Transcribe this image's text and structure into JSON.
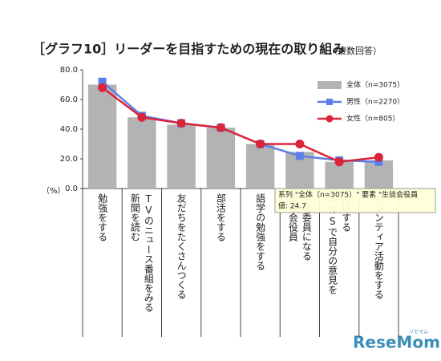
{
  "chart_data": {
    "type": "bar_line",
    "title": "［グラフ10］リーダーを目指すための現在の取り組み",
    "subtitle": "（複数回答）",
    "y_unit": "（%）",
    "categories": [
      [
        "勉強をする"
      ],
      [
        "新聞を読む",
        "TVのニュース番組をみる"
      ],
      [
        "友だちをたくさんつくる"
      ],
      [
        "部活をする"
      ],
      [
        "語学の勉強をする"
      ],
      [
        "生徒会役員",
        "学級委員になる"
      ],
      [
        "SNSで自分の意見を",
        "発信する"
      ],
      [
        "ボランティア活動をする"
      ]
    ],
    "series": [
      {
        "name": "全体（n=3075）",
        "kind": "bar",
        "color": "#b3b3b3",
        "values": [
          70,
          48,
          43,
          41,
          30,
          24.7,
          18,
          19
        ]
      },
      {
        "name": "男性（n=2270）",
        "kind": "line",
        "marker": "square",
        "color": "#5b7fe8",
        "values": [
          72,
          49,
          44,
          41,
          30,
          22,
          19,
          18
        ]
      },
      {
        "name": "女性（n=805）",
        "kind": "line",
        "marker": "circle",
        "color": "#d9243a",
        "values": [
          68,
          48,
          44,
          41,
          30,
          30,
          18,
          21
        ]
      }
    ],
    "ylim": [
      0,
      80
    ],
    "yticks": [
      {
        "value": 0,
        "label": "0.0"
      },
      {
        "value": 20,
        "label": "20.0"
      },
      {
        "value": 40,
        "label": "40.0"
      },
      {
        "value": 60,
        "label": "60.0"
      },
      {
        "value": 80,
        "label": "80.0"
      }
    ],
    "legend": "top-right",
    "tooltip": {
      "line1": "系列 \"全体（n=3075）\" 要素 \"生徒会役員",
      "line2": "値: 24.7"
    },
    "logo": "ReseMom",
    "logo_sub": "リセマム"
  }
}
